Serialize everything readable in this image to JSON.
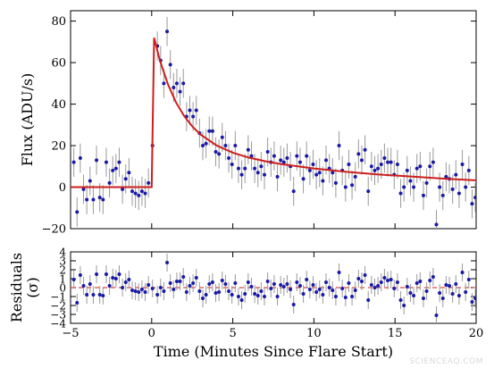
{
  "watermark": "SCIENCEAQ.COM",
  "colors": {
    "points": "#1a1aa6",
    "errorbars": "#9a9a9a",
    "model": "#cc1f1f",
    "zero_line": "#dd4444"
  },
  "chart_data": [
    {
      "type": "scatter",
      "panel": "top",
      "xlabel": "",
      "ylabel": "Flux (ADU/s)",
      "xlim": [
        -5,
        20
      ],
      "ylim": [
        -20,
        85
      ],
      "xticks": [
        -5,
        0,
        5,
        10,
        15,
        20
      ],
      "yticks": [
        -20,
        0,
        20,
        40,
        60,
        80
      ],
      "show_x_ticklabels": false,
      "model": {
        "name": "",
        "points": [
          [
            -5,
            0
          ],
          [
            0,
            0
          ],
          [
            0.15,
            72
          ],
          [
            0.5,
            61.2
          ],
          [
            1,
            49.6
          ],
          [
            1.5,
            40.8
          ],
          [
            2,
            34.3
          ],
          [
            2.5,
            29.3
          ],
          [
            3,
            25.4
          ],
          [
            4,
            20.1
          ],
          [
            5,
            16.6
          ],
          [
            6,
            14.2
          ],
          [
            7,
            12.5
          ],
          [
            8,
            11.1
          ],
          [
            10,
            9.0
          ],
          [
            12,
            7.4
          ],
          [
            14,
            6.1
          ],
          [
            16,
            5.1
          ],
          [
            18,
            4.1
          ],
          [
            20,
            3.3
          ]
        ]
      },
      "points": [
        [
          -4.8,
          12,
          7
        ],
        [
          -4.6,
          -12,
          7
        ],
        [
          -4.4,
          14,
          7
        ],
        [
          -4.2,
          -1,
          7
        ],
        [
          -4.0,
          -6,
          7
        ],
        [
          -3.8,
          3,
          7
        ],
        [
          -3.6,
          -6,
          7
        ],
        [
          -3.4,
          13,
          7
        ],
        [
          -3.2,
          -5,
          7
        ],
        [
          -3.0,
          -6,
          7
        ],
        [
          -2.8,
          12,
          7
        ],
        [
          -2.6,
          2,
          7
        ],
        [
          -2.4,
          8,
          7
        ],
        [
          -2.2,
          9,
          7
        ],
        [
          -2.0,
          12,
          7
        ],
        [
          -1.8,
          -1,
          7
        ],
        [
          -1.6,
          4,
          7
        ],
        [
          -1.4,
          7,
          7
        ],
        [
          -1.2,
          -2,
          7
        ],
        [
          -1.0,
          -3,
          7
        ],
        [
          -0.8,
          -4,
          7
        ],
        [
          -0.6,
          -2,
          7
        ],
        [
          -0.4,
          -3,
          7
        ],
        [
          -0.2,
          2,
          7
        ],
        [
          0.05,
          20,
          7
        ],
        [
          0.35,
          68,
          7
        ],
        [
          0.55,
          61,
          7
        ],
        [
          0.75,
          50,
          7
        ],
        [
          0.95,
          75,
          7
        ],
        [
          1.15,
          59,
          7
        ],
        [
          1.35,
          48,
          7
        ],
        [
          1.55,
          50,
          7
        ],
        [
          1.75,
          46,
          7
        ],
        [
          1.95,
          50,
          7
        ],
        [
          2.15,
          34,
          7
        ],
        [
          2.35,
          37,
          7
        ],
        [
          2.55,
          34,
          7
        ],
        [
          2.75,
          37,
          7
        ],
        [
          2.95,
          26,
          7
        ],
        [
          3.15,
          20,
          7
        ],
        [
          3.35,
          21,
          7
        ],
        [
          3.55,
          27,
          7
        ],
        [
          3.75,
          27,
          7
        ],
        [
          3.95,
          17,
          7
        ],
        [
          4.15,
          16,
          7
        ],
        [
          4.35,
          24,
          7
        ],
        [
          4.55,
          20,
          7
        ],
        [
          4.75,
          14,
          7
        ],
        [
          4.95,
          11,
          7
        ],
        [
          5.15,
          20,
          7
        ],
        [
          5.35,
          9,
          7
        ],
        [
          5.55,
          6,
          7
        ],
        [
          5.75,
          9,
          7
        ],
        [
          5.95,
          18,
          7
        ],
        [
          6.15,
          15,
          7
        ],
        [
          6.35,
          9,
          7
        ],
        [
          6.55,
          7,
          7
        ],
        [
          6.75,
          10,
          7
        ],
        [
          6.95,
          6,
          7
        ],
        [
          7.15,
          17,
          7
        ],
        [
          7.35,
          12,
          7
        ],
        [
          7.55,
          15,
          7
        ],
        [
          7.75,
          5,
          7
        ],
        [
          7.95,
          13,
          7
        ],
        [
          8.15,
          12,
          7
        ],
        [
          8.35,
          14,
          7
        ],
        [
          8.55,
          10,
          7
        ],
        [
          8.75,
          -2,
          7
        ],
        [
          8.95,
          15,
          7
        ],
        [
          9.15,
          12,
          7
        ],
        [
          9.35,
          4,
          7
        ],
        [
          9.55,
          15,
          7
        ],
        [
          9.75,
          8,
          7
        ],
        [
          9.95,
          11,
          7
        ],
        [
          10.15,
          6,
          7
        ],
        [
          10.35,
          7,
          7
        ],
        [
          10.55,
          3,
          7
        ],
        [
          10.75,
          13,
          7
        ],
        [
          10.95,
          9,
          7
        ],
        [
          11.15,
          7,
          7
        ],
        [
          11.35,
          2,
          7
        ],
        [
          11.55,
          20,
          7
        ],
        [
          11.75,
          8,
          7
        ],
        [
          11.95,
          0,
          7
        ],
        [
          12.15,
          11,
          7
        ],
        [
          12.35,
          1,
          7
        ],
        [
          12.55,
          5,
          7
        ],
        [
          12.75,
          16,
          7
        ],
        [
          12.95,
          13,
          7
        ],
        [
          13.15,
          18,
          7
        ],
        [
          13.35,
          -2,
          7
        ],
        [
          13.55,
          10,
          7
        ],
        [
          13.75,
          8,
          7
        ],
        [
          13.95,
          9,
          7
        ],
        [
          14.15,
          11,
          7
        ],
        [
          14.35,
          14,
          7
        ],
        [
          14.55,
          12,
          7
        ],
        [
          14.75,
          12,
          7
        ],
        [
          14.95,
          6,
          7
        ],
        [
          15.15,
          11,
          7
        ],
        [
          15.35,
          -3,
          7
        ],
        [
          15.55,
          0,
          7
        ],
        [
          15.75,
          8,
          7
        ],
        [
          15.95,
          3,
          7
        ],
        [
          16.15,
          0,
          7
        ],
        [
          16.35,
          9,
          7
        ],
        [
          16.55,
          10,
          7
        ],
        [
          16.75,
          -4,
          7
        ],
        [
          16.95,
          2,
          7
        ],
        [
          17.15,
          10,
          7
        ],
        [
          17.35,
          12,
          7
        ],
        [
          17.55,
          -18,
          7
        ],
        [
          17.75,
          0,
          7
        ],
        [
          17.95,
          -4,
          7
        ],
        [
          18.15,
          5,
          7
        ],
        [
          18.35,
          4,
          7
        ],
        [
          18.55,
          -1,
          7
        ],
        [
          18.75,
          6,
          7
        ],
        [
          18.95,
          -3,
          7
        ],
        [
          19.15,
          11,
          7
        ],
        [
          19.35,
          0,
          7
        ],
        [
          19.55,
          8,
          7
        ],
        [
          19.75,
          -8,
          7
        ],
        [
          19.95,
          -5,
          7
        ]
      ]
    },
    {
      "type": "scatter",
      "panel": "bottom",
      "xlabel": "Time (Minutes Since Flare Start)",
      "ylabel": "Residuals\n(σ)",
      "xlim": [
        -5,
        20
      ],
      "ylim": [
        -4,
        4
      ],
      "xticks": [
        -5,
        0,
        5,
        10,
        15,
        20
      ],
      "yticks": [
        -4,
        -3,
        -2,
        -1,
        0,
        1,
        2,
        3,
        4
      ],
      "reference_line": 0,
      "points": [
        [
          -4.8,
          0.9,
          1
        ],
        [
          -4.6,
          -1.7,
          1
        ],
        [
          -4.4,
          1.4,
          1
        ],
        [
          -4.2,
          0.2,
          1
        ],
        [
          -4.0,
          -0.8,
          1
        ],
        [
          -3.8,
          0.4,
          1
        ],
        [
          -3.6,
          -0.8,
          1
        ],
        [
          -3.4,
          1.5,
          1
        ],
        [
          -3.2,
          -0.8,
          1
        ],
        [
          -3.0,
          -0.9,
          1
        ],
        [
          -2.8,
          1.5,
          1
        ],
        [
          -2.6,
          0.2,
          1
        ],
        [
          -2.4,
          1.1,
          1
        ],
        [
          -2.2,
          1.0,
          1
        ],
        [
          -2.0,
          1.5,
          1
        ],
        [
          -1.8,
          0.0,
          1
        ],
        [
          -1.6,
          0.6,
          1
        ],
        [
          -1.4,
          0.9,
          1
        ],
        [
          -1.2,
          -0.3,
          1
        ],
        [
          -1.0,
          -0.4,
          1
        ],
        [
          -0.8,
          -0.5,
          1
        ],
        [
          -0.6,
          -0.2,
          1
        ],
        [
          -0.4,
          -0.5,
          1
        ],
        [
          -0.2,
          0.3,
          1
        ],
        [
          0.05,
          -0.1,
          1
        ],
        [
          0.35,
          -0.8,
          1
        ],
        [
          0.55,
          0.0,
          1
        ],
        [
          0.75,
          -0.4,
          1
        ],
        [
          0.95,
          2.8,
          1
        ],
        [
          1.15,
          0.5,
          1
        ],
        [
          1.35,
          -0.2,
          1
        ],
        [
          1.55,
          0.7,
          1
        ],
        [
          1.75,
          0.7,
          1
        ],
        [
          1.95,
          1.2,
          1
        ],
        [
          2.15,
          -0.5,
          1
        ],
        [
          2.35,
          0.2,
          1
        ],
        [
          2.55,
          0.5,
          1
        ],
        [
          2.75,
          1.1,
          1
        ],
        [
          2.95,
          -0.4,
          1
        ],
        [
          3.15,
          -1.2,
          1
        ],
        [
          3.35,
          -0.8,
          1
        ],
        [
          3.55,
          0.4,
          1
        ],
        [
          3.75,
          0.6,
          1
        ],
        [
          3.95,
          -0.6,
          1
        ],
        [
          4.15,
          -0.5,
          1
        ],
        [
          4.35,
          0.8,
          1
        ],
        [
          4.55,
          0.4,
          1
        ],
        [
          4.75,
          -0.4,
          1
        ],
        [
          4.95,
          -0.8,
          1
        ],
        [
          5.15,
          0.5,
          1
        ],
        [
          5.35,
          -1.0,
          1
        ],
        [
          5.55,
          -1.4,
          1
        ],
        [
          5.75,
          -0.7,
          1
        ],
        [
          5.95,
          0.6,
          1
        ],
        [
          6.15,
          0.1,
          1
        ],
        [
          6.35,
          -0.7,
          1
        ],
        [
          6.55,
          -0.9,
          1
        ],
        [
          6.75,
          -0.4,
          1
        ],
        [
          6.95,
          -1.0,
          1
        ],
        [
          7.15,
          0.7,
          1
        ],
        [
          7.35,
          -0.1,
          1
        ],
        [
          7.55,
          0.4,
          1
        ],
        [
          7.75,
          -1.0,
          1
        ],
        [
          7.95,
          0.3,
          1
        ],
        [
          8.15,
          0.1,
          1
        ],
        [
          8.35,
          0.4,
          1
        ],
        [
          8.55,
          -0.2,
          1
        ],
        [
          8.75,
          -1.9,
          1
        ],
        [
          8.95,
          0.6,
          1
        ],
        [
          9.15,
          0.2,
          1
        ],
        [
          9.35,
          -0.7,
          1
        ],
        [
          9.55,
          0.9,
          1
        ],
        [
          9.75,
          -0.2,
          1
        ],
        [
          9.95,
          0.3,
          1
        ],
        [
          10.15,
          -0.5,
          1
        ],
        [
          10.35,
          -0.2,
          1
        ],
        [
          10.55,
          -0.8,
          1
        ],
        [
          10.75,
          0.6,
          1
        ],
        [
          10.95,
          0.0,
          1
        ],
        [
          11.15,
          -0.3,
          1
        ],
        [
          11.35,
          -1.0,
          1
        ],
        [
          11.55,
          1.7,
          1
        ],
        [
          11.75,
          -0.1,
          1
        ],
        [
          11.95,
          -1.1,
          1
        ],
        [
          12.15,
          0.5,
          1
        ],
        [
          12.35,
          -1.0,
          1
        ],
        [
          12.55,
          -0.3,
          1
        ],
        [
          12.75,
          1.0,
          1
        ],
        [
          12.95,
          0.7,
          1
        ],
        [
          13.15,
          1.4,
          1
        ],
        [
          13.35,
          -1.4,
          1
        ],
        [
          13.55,
          0.3,
          1
        ],
        [
          13.75,
          0.0,
          1
        ],
        [
          13.95,
          0.2,
          1
        ],
        [
          14.15,
          0.6,
          1
        ],
        [
          14.35,
          1.1,
          1
        ],
        [
          14.55,
          0.8,
          1
        ],
        [
          14.75,
          0.9,
          1
        ],
        [
          14.95,
          -0.1,
          1
        ],
        [
          15.15,
          0.6,
          1
        ],
        [
          15.35,
          -1.4,
          1
        ],
        [
          15.55,
          -2.0,
          1
        ],
        [
          15.75,
          0.1,
          1
        ],
        [
          15.95,
          -0.6,
          1
        ],
        [
          16.15,
          -0.9,
          1
        ],
        [
          16.35,
          0.5,
          1
        ],
        [
          16.55,
          0.7,
          1
        ],
        [
          16.75,
          -1.2,
          1
        ],
        [
          16.95,
          -0.4,
          1
        ],
        [
          17.15,
          0.8,
          1
        ],
        [
          17.35,
          1.2,
          1
        ],
        [
          17.55,
          -3.1,
          1
        ],
        [
          17.75,
          -0.6,
          1
        ],
        [
          17.95,
          -1.2,
          1
        ],
        [
          18.15,
          0.3,
          1
        ],
        [
          18.35,
          0.2,
          1
        ],
        [
          18.55,
          -0.7,
          1
        ],
        [
          18.75,
          0.4,
          1
        ],
        [
          18.95,
          -0.9,
          1
        ],
        [
          19.15,
          1.7,
          1
        ],
        [
          19.35,
          -0.5,
          1
        ],
        [
          19.55,
          0.9,
          1
        ],
        [
          19.75,
          -1.6,
          1
        ],
        [
          19.95,
          -1.2,
          1
        ]
      ]
    }
  ]
}
